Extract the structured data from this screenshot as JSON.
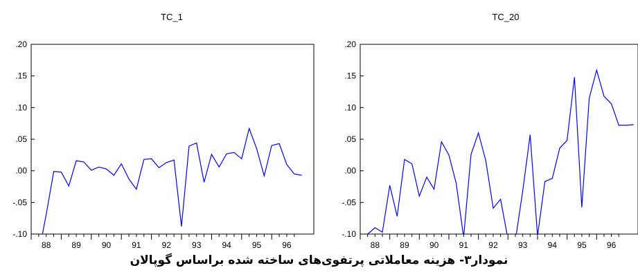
{
  "caption": "نمودار۳- هزینه معاملاتی پرتفوی‌های ساخته شده براساس گوپالان",
  "chart_data": [
    {
      "type": "line",
      "title": "TC_1",
      "xlabel": "",
      "ylabel": "",
      "ylim": [
        -0.1,
        0.2
      ],
      "yticks": [
        ".20",
        ".15",
        ".10",
        ".05",
        ".00",
        "-.05",
        "-.10"
      ],
      "xticks": [
        "88",
        "89",
        "90",
        "91",
        "92",
        "93",
        "94",
        "95",
        "96"
      ],
      "x_range": [
        87.5,
        96.9
      ],
      "grid": false,
      "line_color": "#0000ff",
      "series": [
        {
          "x": [
            87.875,
            88.0,
            88.25,
            88.5,
            88.75,
            89.0,
            89.25,
            89.5,
            89.75,
            90.0,
            90.25,
            90.5,
            90.75,
            91.0,
            91.25,
            91.5,
            91.75,
            92.0,
            92.25,
            92.5,
            92.75,
            93.0,
            93.25,
            93.5,
            93.75,
            94.0,
            94.25,
            94.5,
            94.75,
            95.0,
            95.25,
            95.5,
            95.75,
            96.0,
            96.25,
            96.5
          ],
          "values": [
            -0.1,
            -0.069,
            -0.001,
            -0.002,
            -0.024,
            0.016,
            0.014,
            0.001,
            0.006,
            0.003,
            -0.007,
            0.011,
            -0.013,
            -0.029,
            0.018,
            0.019,
            0.005,
            0.013,
            0.017,
            -0.088,
            0.039,
            0.044,
            -0.018,
            0.026,
            0.006,
            0.027,
            0.029,
            0.019,
            0.067,
            0.035,
            -0.008,
            0.04,
            0.043,
            0.01,
            -0.005,
            -0.007
          ]
        }
      ]
    },
    {
      "type": "line",
      "title": "TC_20",
      "xlabel": "",
      "ylabel": "",
      "ylim": [
        -0.1,
        0.2
      ],
      "yticks": [
        ".20",
        ".15",
        ".10",
        ".05",
        ".00",
        "-.05",
        "-.10"
      ],
      "xticks": [
        "88",
        "89",
        "90",
        "91",
        "92",
        "93",
        "94",
        "95",
        "96"
      ],
      "x_range": [
        87.5,
        96.9
      ],
      "grid": false,
      "line_color": "#0000ff",
      "series": [
        {
          "x": [
            87.75,
            88.0,
            88.25,
            88.5,
            88.75,
            89.0,
            89.25,
            89.5,
            89.75,
            90.0,
            90.25,
            90.5,
            90.75,
            91.0,
            91.25,
            91.5,
            91.75,
            92.0,
            92.25,
            92.5,
            92.75,
            93.0,
            93.25,
            93.5,
            93.75,
            94.0,
            94.25,
            94.5,
            94.75,
            95.0,
            95.25,
            95.5,
            95.75,
            96.0,
            96.25,
            96.5,
            96.75
          ],
          "values": [
            -0.1,
            -0.09,
            -0.097,
            -0.023,
            -0.072,
            0.018,
            0.011,
            -0.04,
            -0.01,
            -0.029,
            0.046,
            0.025,
            -0.02,
            -0.105,
            0.026,
            0.06,
            0.016,
            -0.059,
            -0.045,
            -0.108,
            -0.11,
            -0.032,
            0.057,
            -0.103,
            -0.017,
            -0.012,
            0.036,
            0.048,
            0.148,
            -0.058,
            0.115,
            0.159,
            0.118,
            0.106,
            0.072,
            0.072,
            0.073
          ]
        }
      ]
    }
  ]
}
